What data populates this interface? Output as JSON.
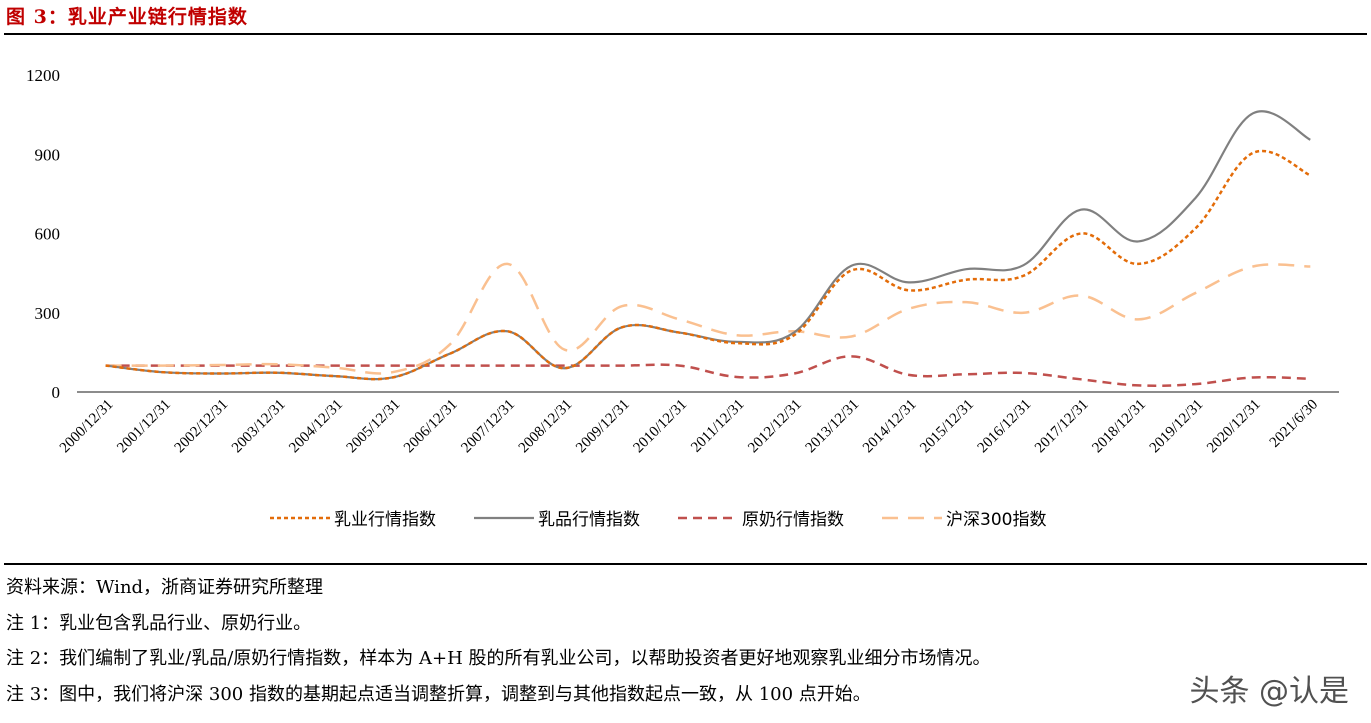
{
  "figure": {
    "title": "图 3：乳业产业链行情指数"
  },
  "chart_data": {
    "type": "line",
    "title": "乳业产业链行情指数",
    "xlabel": "",
    "ylabel": "",
    "ylim": [
      0,
      1200
    ],
    "yticks": [
      0,
      300,
      600,
      900,
      1200
    ],
    "grid": false,
    "legend_position": "bottom",
    "categories": [
      "2000/12/31",
      "2001/12/31",
      "2002/12/31",
      "2003/12/31",
      "2004/12/31",
      "2005/12/31",
      "2006/12/31",
      "2007/12/31",
      "2008/12/31",
      "2009/12/31",
      "2010/12/31",
      "2011/12/31",
      "2012/12/31",
      "2013/12/31",
      "2014/12/31",
      "2015/12/31",
      "2016/12/31",
      "2017/12/31",
      "2018/12/31",
      "2019/12/31",
      "2020/12/31",
      "2021/6/30"
    ],
    "series": [
      {
        "name": "乳业行情指数",
        "color": "#e36c09",
        "style": "dotted",
        "values": [
          100,
          75,
          70,
          73,
          60,
          55,
          145,
          230,
          90,
          245,
          225,
          185,
          215,
          460,
          385,
          425,
          440,
          600,
          485,
          620,
          905,
          820
        ]
      },
      {
        "name": "乳品行情指数",
        "color": "#808080",
        "style": "solid",
        "values": [
          100,
          75,
          70,
          73,
          60,
          55,
          145,
          230,
          90,
          245,
          225,
          190,
          225,
          478,
          415,
          465,
          480,
          690,
          570,
          735,
          1055,
          955
        ]
      },
      {
        "name": "原奶行情指数",
        "color": "#c0504d",
        "style": "dashed",
        "values": [
          100,
          100,
          100,
          100,
          100,
          100,
          100,
          100,
          100,
          100,
          100,
          57,
          70,
          135,
          65,
          67,
          72,
          48,
          25,
          30,
          55,
          50
        ]
      },
      {
        "name": "沪深300指数",
        "color": "#fac090",
        "style": "long-dash",
        "values": [
          100,
          100,
          102,
          105,
          92,
          75,
          180,
          485,
          160,
          325,
          275,
          215,
          230,
          210,
          315,
          340,
          300,
          365,
          275,
          375,
          475,
          475
        ]
      }
    ]
  },
  "notes": {
    "source": "资料来源：Wind，浙商证券研究所整理",
    "note1": "注 1：乳业包含乳品行业、原奶行业。",
    "note2": "注 2：我们编制了乳业/乳品/原奶行情指数，样本为 A+H 股的所有乳业公司，以帮助投资者更好地观察乳业细分市场情况。",
    "note3": "注 3：图中，我们将沪深 300 指数的基期起点适当调整折算，调整到与其他指数起点一致，从 100 点开始。"
  },
  "watermark": "头条 @认是"
}
